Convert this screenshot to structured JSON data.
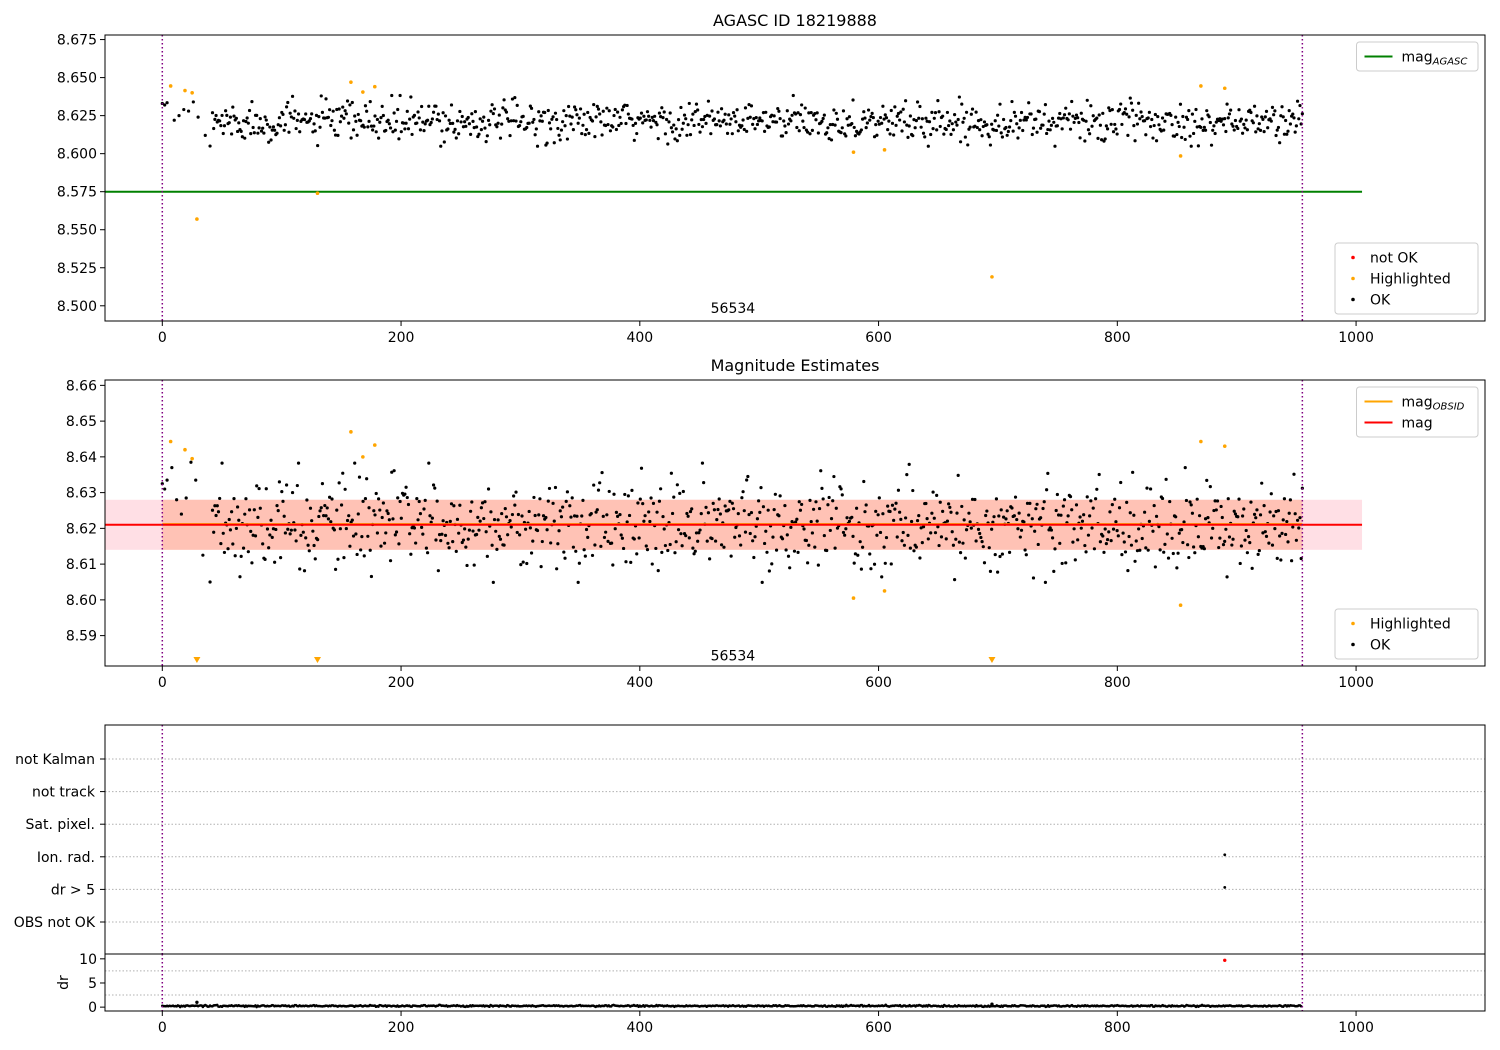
{
  "chart_data": [
    {
      "type": "scatter",
      "title": "AGASC ID 18219888",
      "xlim": [
        -48,
        1108
      ],
      "ylim": [
        8.49,
        8.678
      ],
      "xticks": [
        "0",
        "200",
        "400",
        "600",
        "800",
        "1000"
      ],
      "yticks": [
        "8.500",
        "8.525",
        "8.550",
        "8.575",
        "8.600",
        "8.625",
        "8.650",
        "8.675"
      ],
      "annotation": {
        "text": "56534",
        "x": 478,
        "y": 8.4985
      },
      "vlines": [
        0,
        955
      ],
      "hlines": [
        {
          "name": "mag_AGASC",
          "y": 8.575,
          "x0": -48,
          "x1": 1005,
          "color": "#008000"
        }
      ],
      "legend_top": {
        "placement": "top-right",
        "entries": [
          {
            "text": "mag",
            "sub": "AGASC",
            "kind": "line",
            "color": "#008000"
          }
        ]
      },
      "legend_bottom": {
        "placement": "bottom-right",
        "entries": [
          {
            "text": "not OK",
            "kind": "dot",
            "color": "#ff0000"
          },
          {
            "text": "Highlighted",
            "kind": "dot",
            "color": "#ffa500"
          },
          {
            "text": "OK",
            "kind": "dot",
            "color": "#000000"
          }
        ]
      },
      "series": [
        {
          "name": "Highlighted",
          "color": "#ffa500",
          "points": [
            [
              7,
              8.6445
            ],
            [
              19,
              8.6415
            ],
            [
              25,
              8.64
            ],
            [
              29,
              8.557
            ],
            [
              130,
              8.574
            ],
            [
              158,
              8.647
            ],
            [
              168,
              8.6405
            ],
            [
              178,
              8.644
            ],
            [
              579,
              8.601
            ],
            [
              605,
              8.6025
            ],
            [
              695,
              8.519
            ],
            [
              853,
              8.5985
            ],
            [
              870,
              8.6445
            ],
            [
              890,
              8.643
            ]
          ]
        }
      ],
      "ok_band": {
        "n": 955,
        "x0": 0,
        "x1": 955,
        "center": 8.621,
        "amplitude": 0.0115,
        "early": [
          [
            0,
            8.633
          ],
          [
            2,
            8.632
          ],
          [
            4,
            8.6335
          ],
          [
            10,
            8.622
          ],
          [
            14,
            8.625
          ],
          [
            18,
            8.629
          ],
          [
            22,
            8.628
          ],
          [
            26,
            8.634
          ],
          [
            30,
            8.624
          ],
          [
            36,
            8.612
          ],
          [
            40,
            8.605
          ]
        ]
      }
    },
    {
      "type": "scatter",
      "title": "Magnitude Estimates",
      "xlim": [
        -48,
        1108
      ],
      "ylim": [
        8.5815,
        8.6615
      ],
      "xticks": [
        "0",
        "200",
        "400",
        "600",
        "800",
        "1000"
      ],
      "yticks": [
        "8.59",
        "8.60",
        "8.61",
        "8.62",
        "8.63",
        "8.64",
        "8.65",
        "8.66"
      ],
      "annotation": {
        "text": "56534",
        "x": 478,
        "y": 8.5845
      },
      "vlines": [
        0,
        955
      ],
      "bands": [
        {
          "y0": 8.614,
          "y1": 8.628,
          "x0": -48,
          "x1": 1005,
          "color": "#ffc0cb",
          "opacity": 0.5
        },
        {
          "y0": 8.614,
          "y1": 8.628,
          "x0": 0,
          "x1": 955,
          "color": "#ffa07a",
          "opacity": 0.45
        }
      ],
      "hlines": [
        {
          "name": "mag_OBSID",
          "y": 8.6212,
          "x0": 0,
          "x1": 955,
          "color": "#ffa500"
        },
        {
          "name": "mag",
          "y": 8.621,
          "x0": -48,
          "x1": 1005,
          "color": "#ff0000"
        }
      ],
      "legend_top": {
        "placement": "top-right",
        "entries": [
          {
            "text": "mag",
            "sub": "OBSID",
            "kind": "line",
            "color": "#ffa500"
          },
          {
            "text": "mag",
            "sub": "",
            "kind": "line",
            "color": "#ff0000"
          }
        ]
      },
      "legend_bottom": {
        "placement": "bottom-right",
        "entries": [
          {
            "text": "Highlighted",
            "kind": "dot",
            "color": "#ffa500"
          },
          {
            "text": "OK",
            "kind": "dot",
            "color": "#000000"
          }
        ]
      },
      "series": [
        {
          "name": "Highlighted",
          "color": "#ffa500",
          "points": [
            [
              7,
              8.6443
            ],
            [
              19,
              8.642
            ],
            [
              25,
              8.6395
            ],
            [
              158,
              8.647
            ],
            [
              168,
              8.64
            ],
            [
              178,
              8.6433
            ],
            [
              579,
              8.6005
            ],
            [
              605,
              8.6025
            ],
            [
              853,
              8.5985
            ],
            [
              870,
              8.6443
            ],
            [
              890,
              8.643
            ]
          ]
        }
      ],
      "below_range_markers": [
        29,
        130,
        695
      ],
      "ok_band": {
        "n": 955,
        "x0": 0,
        "x1": 955,
        "center": 8.621,
        "amplitude": 0.0115,
        "early": [
          [
            0,
            8.6325
          ],
          [
            2,
            8.631
          ],
          [
            4,
            8.6335
          ],
          [
            8,
            8.637
          ],
          [
            12,
            8.628
          ],
          [
            16,
            8.624
          ],
          [
            20,
            8.6285
          ],
          [
            24,
            8.6385
          ],
          [
            28,
            8.6335
          ],
          [
            34,
            8.6125
          ],
          [
            40,
            8.605
          ]
        ]
      }
    },
    {
      "type": "scatter",
      "title": "",
      "xlim": [
        -48,
        1108
      ],
      "vlines": [
        0,
        955
      ],
      "flag_rows": [
        "not Kalman",
        "not track",
        "Sat. pixel.",
        "Ion. rad.",
        "dr > 5",
        "OBS not OK"
      ],
      "flag_points": [
        {
          "row": "Ion. rad.",
          "x": 890
        },
        {
          "row": "dr > 5",
          "x": 890
        }
      ],
      "dr": {
        "ylabel": "dr",
        "ylim": [
          -0.8,
          11.0
        ],
        "yticks": [
          "0",
          "5",
          "10"
        ],
        "xticks": [
          "0",
          "200",
          "400",
          "600",
          "800",
          "1000"
        ],
        "baseline": 0.25,
        "outliers": [
          {
            "x": 890,
            "y": 9.7,
            "color": "#ff0000"
          },
          {
            "x": 29,
            "y": 1.0,
            "color": "#000000"
          },
          {
            "x": 695,
            "y": 0.6,
            "color": "#000000"
          }
        ]
      }
    }
  ]
}
